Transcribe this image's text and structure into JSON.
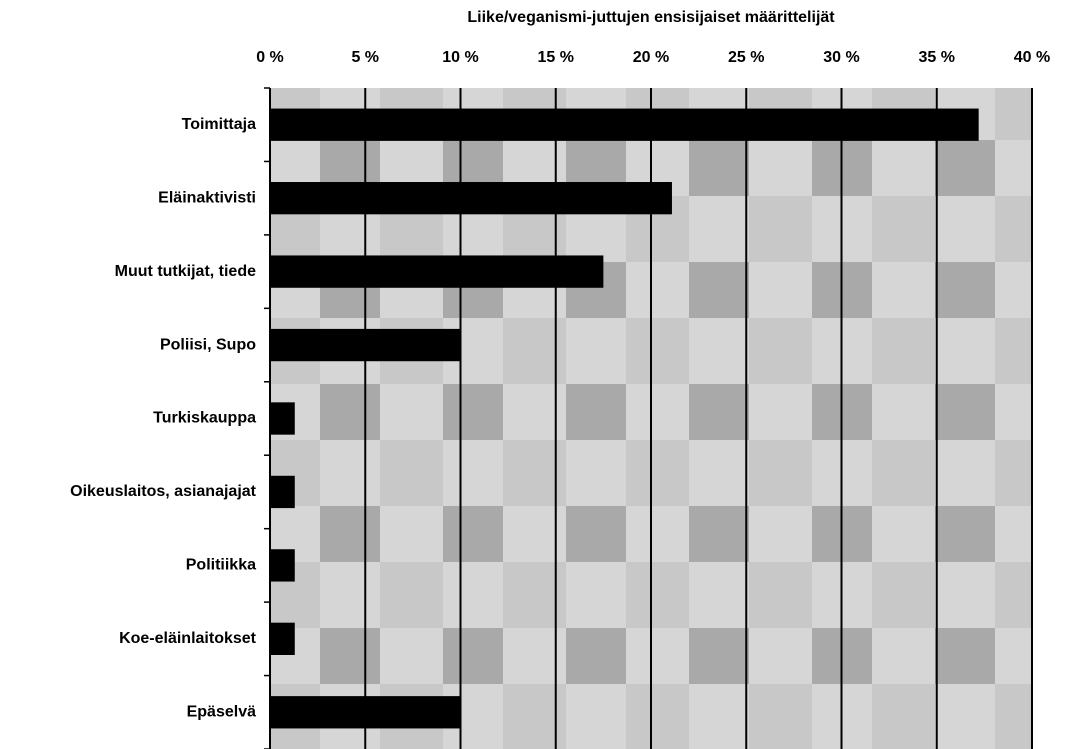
{
  "chart_data": {
    "type": "bar",
    "orientation": "horizontal",
    "title": "Liike/veganismi-juttujen ensisijaiset määrittelijät",
    "categories": [
      "Toimittaja",
      "Eläinaktivisti",
      "Muut tutkijat, tiede",
      "Poliisi, Supo",
      "Turkiskauppa",
      "Oikeuslaitos, asianajajat",
      "Politiikka",
      "Koe-eläinlaitokset",
      "Epäselvä"
    ],
    "values": [
      37.2,
      21.1,
      17.5,
      10,
      1.3,
      1.3,
      1.3,
      1.3,
      10
    ],
    "color": "#000000",
    "xlim": [
      0,
      40
    ],
    "xticks": [
      {
        "value": 0,
        "label": "0 %"
      },
      {
        "value": 5,
        "label": "5 %"
      },
      {
        "value": 10,
        "label": "10 %"
      },
      {
        "value": 15,
        "label": "15 %"
      },
      {
        "value": 20,
        "label": "20 %"
      },
      {
        "value": 25,
        "label": "25 %"
      },
      {
        "value": 30,
        "label": "30 %"
      },
      {
        "value": 35,
        "label": "35 %"
      },
      {
        "value": 40,
        "label": "40 %"
      }
    ],
    "grid": true
  }
}
